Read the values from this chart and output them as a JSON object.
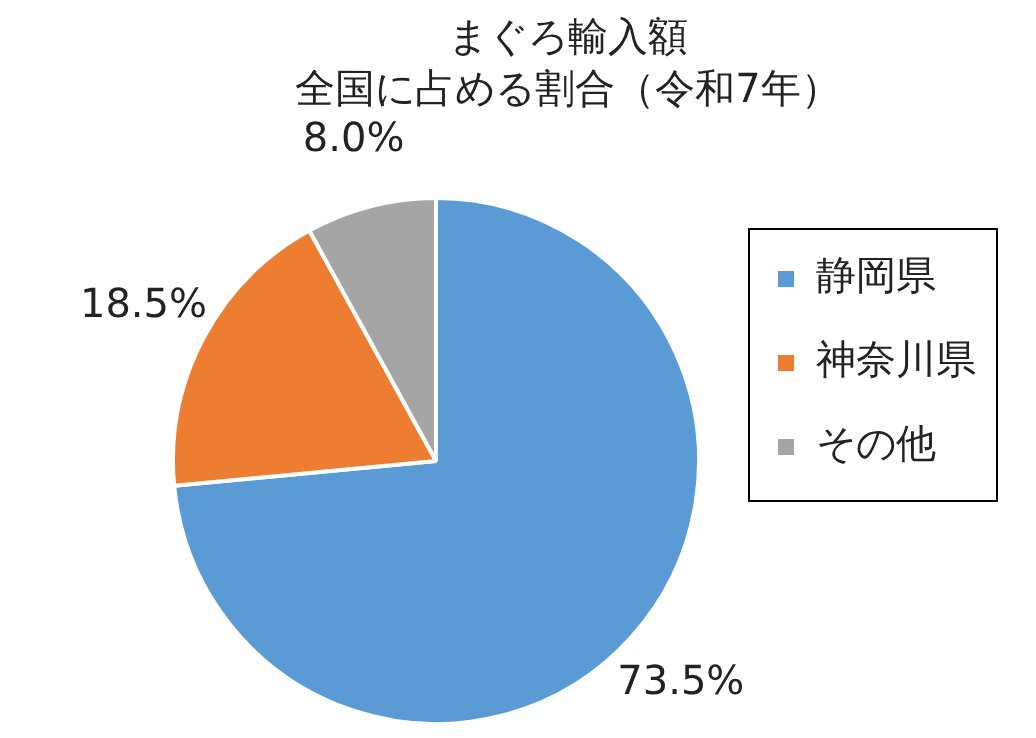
{
  "chart_data": {
    "type": "pie",
    "title": "まぐろ輸入額",
    "subtitle": "全国に占める割合（令和7年）",
    "categories": [
      "静岡県",
      "神奈川県",
      "その他"
    ],
    "values": [
      73.5,
      18.5,
      8.0
    ],
    "value_labels": [
      "73.5%",
      "18.5%",
      "8.0%"
    ],
    "colors": [
      "#5b9bd5",
      "#ed7d31",
      "#a5a5a5"
    ],
    "legend": "right"
  }
}
